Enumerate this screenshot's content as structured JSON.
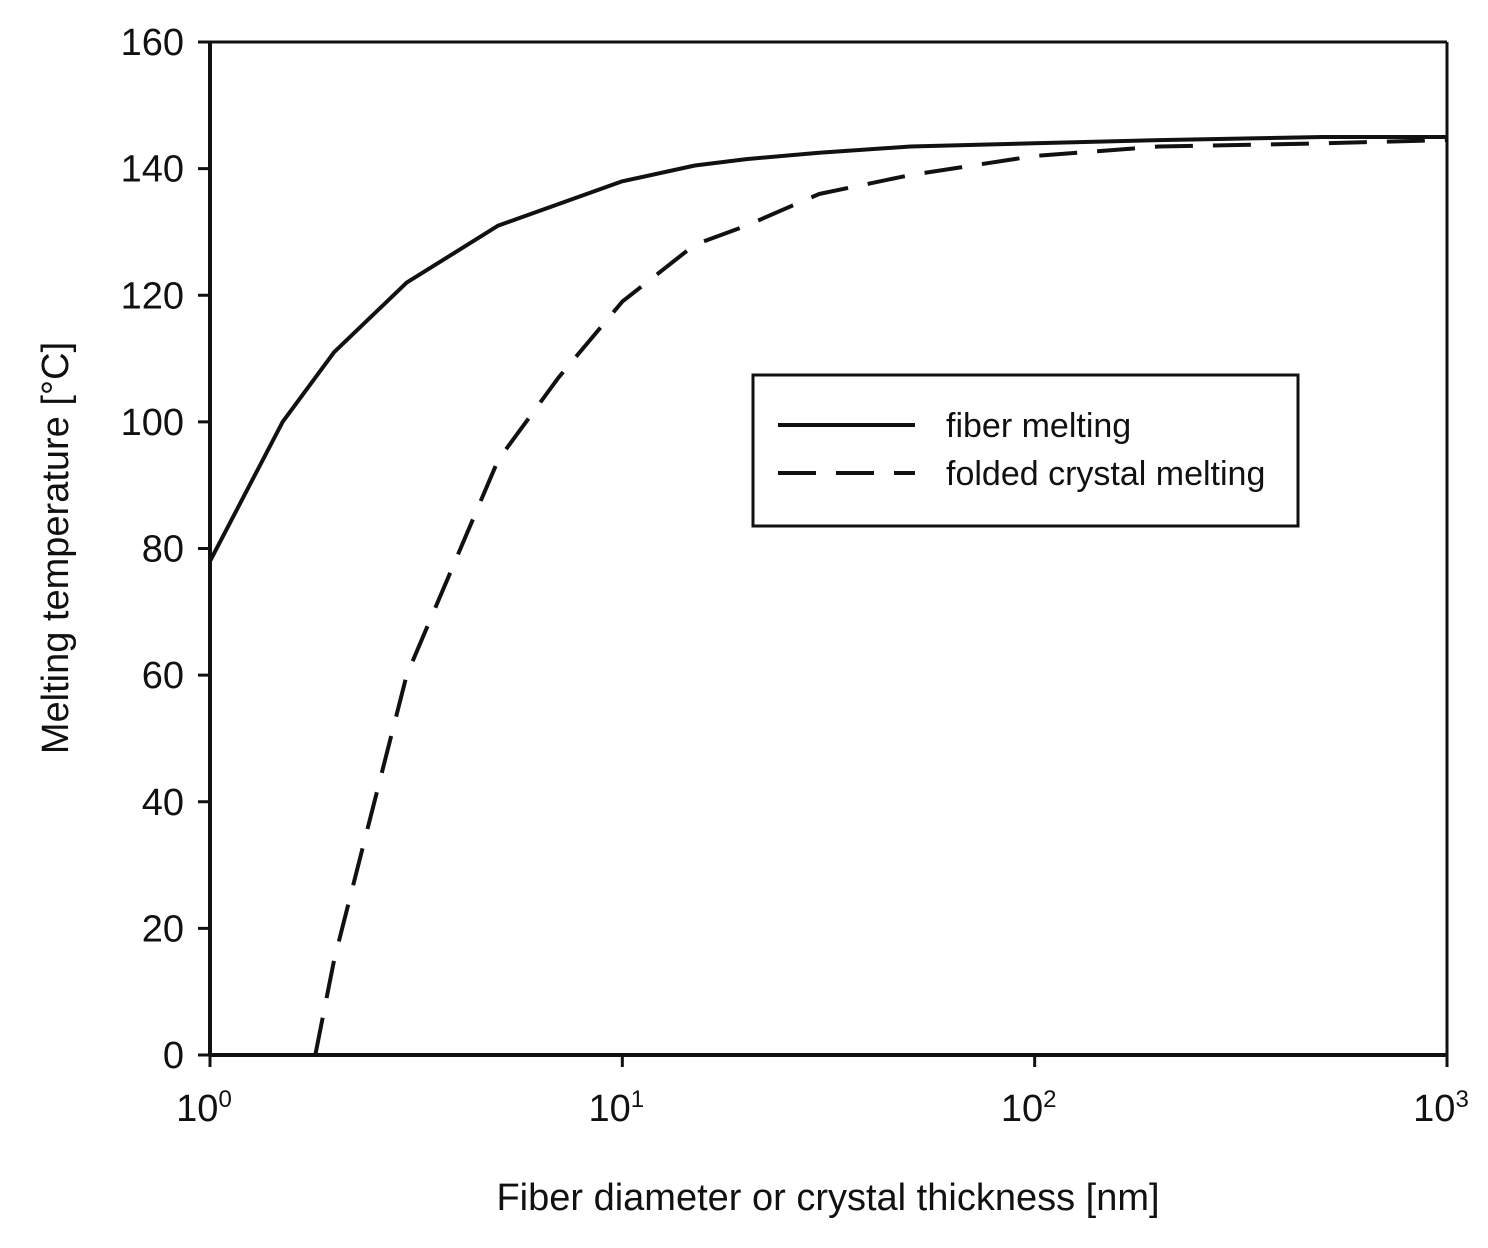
{
  "chart_data": {
    "type": "line",
    "title": "",
    "xlabel": "Fiber diameter or crystal thickness [nm]",
    "ylabel": "Melting temperature [°C]",
    "xscale": "log",
    "xlim": [
      1,
      1000
    ],
    "ylim": [
      0,
      160
    ],
    "grid": false,
    "legend_position": "upper-right",
    "yticks": [
      0,
      20,
      40,
      60,
      80,
      100,
      120,
      140,
      160
    ],
    "xticks": [
      {
        "value": 1,
        "base": "10",
        "exp": "0"
      },
      {
        "value": 10,
        "base": "10",
        "exp": "1"
      },
      {
        "value": 100,
        "base": "10",
        "exp": "2"
      },
      {
        "value": 1000,
        "base": "10",
        "exp": "3"
      }
    ],
    "series": [
      {
        "name": "fiber melting",
        "style": "solid",
        "color": "#111111",
        "x": [
          1,
          1.5,
          2,
          3,
          5,
          10,
          15,
          20,
          30,
          50,
          100,
          200,
          500,
          1000
        ],
        "y": [
          78,
          100,
          111,
          122,
          131,
          138,
          140.5,
          141.5,
          142.5,
          143.5,
          144,
          144.5,
          145,
          145
        ]
      },
      {
        "name": "folded crystal melting",
        "style": "dashed",
        "color": "#111111",
        "x": [
          1.8,
          2,
          3,
          5,
          7,
          10,
          15,
          20,
          30,
          50,
          100,
          200,
          500,
          1000
        ],
        "y": [
          0,
          15,
          60,
          94,
          107,
          119,
          128,
          131,
          136,
          139,
          142,
          143.5,
          144,
          144.5
        ]
      }
    ]
  }
}
